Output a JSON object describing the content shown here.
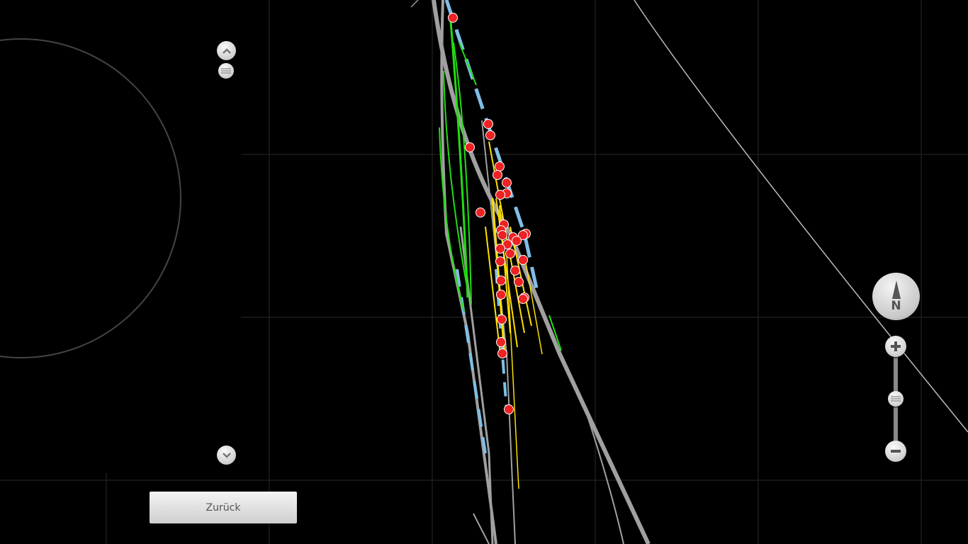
{
  "controls": {
    "back_label": "Zurück",
    "compass_label": "N",
    "zoom_in_icon": "plus-icon",
    "zoom_out_icon": "minus-icon",
    "scroll_up_icon": "chevron-up-icon",
    "scroll_down_icon": "chevron-down-icon"
  },
  "colors": {
    "background": "#000000",
    "track": "#a0a0a0",
    "track_green": "#22dd11",
    "track_yellow": "#ffe000",
    "track_blue": "#7fbfe8",
    "marker": "#ee2222"
  }
}
